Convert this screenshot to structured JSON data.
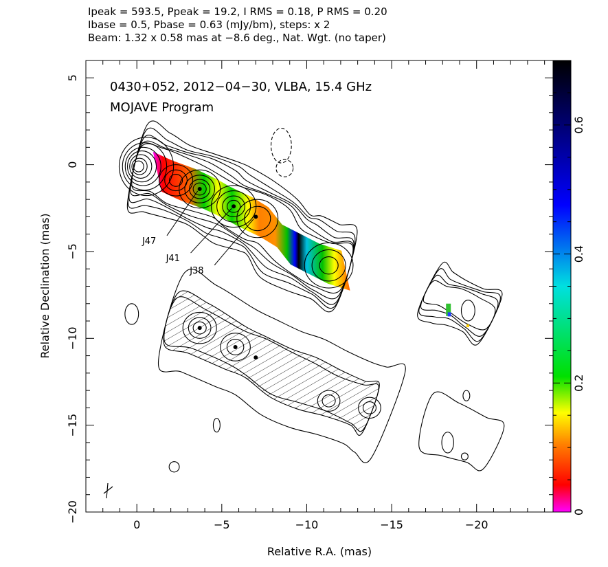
{
  "header": {
    "line1": "Ipeak = 593.5, Ppeak = 19.2, I RMS = 0.18, P RMS = 0.20",
    "line2": "Ibase = 0.5, Pbase = 0.63 (mJy/bm), steps: x 2",
    "line3": "Beam: 1.32 x 0.58 mas at −8.6 deg., Nat. Wgt. (no taper)"
  },
  "chart_data": {
    "type": "contour",
    "title": "0430+052, 2012−04−30, VLBA, 15.4 GHz",
    "subtitle": "MOJAVE Program",
    "xlabel": "Relative R.A. (mas)",
    "ylabel": "Relative Declination (mas)",
    "xlim": [
      3,
      -24.5
    ],
    "ylim": [
      -20,
      6
    ],
    "xticks": [
      0,
      -5,
      -10,
      -15,
      -20
    ],
    "xtick_labels": [
      "0",
      "−5",
      "−10",
      "−15",
      "−20"
    ],
    "yticks": [
      5,
      0,
      -5,
      -10,
      -15,
      -20
    ],
    "ytick_labels": [
      "5",
      "0",
      "−5",
      "−10",
      "−15",
      "−20"
    ],
    "colorbar": {
      "range": [
        0,
        0.7
      ],
      "ticks": [
        0,
        0.2,
        0.4,
        0.6
      ],
      "tick_labels": [
        "0",
        "0.2",
        "0.4",
        "0.6"
      ]
    },
    "components": [
      {
        "name": "J47",
        "x": -3.7,
        "y": -1.4,
        "label_x": -0.8,
        "label_y": -4.4
      },
      {
        "name": "J41",
        "x": -5.7,
        "y": -2.4,
        "label_x": -2.2,
        "label_y": -5.4
      },
      {
        "name": "J38",
        "x": -7.0,
        "y": -3.0,
        "label_x": -3.6,
        "label_y": -6.1
      }
    ],
    "lower_component_dots": [
      {
        "x": -3.7,
        "y": -9.4
      },
      {
        "x": -5.8,
        "y": -10.5
      },
      {
        "x": -7.0,
        "y": -11.1
      }
    ],
    "ridge_upper": [
      [
        0,
        -0.1
      ],
      [
        -1.2,
        -0.4
      ],
      [
        -2.3,
        -0.9
      ],
      [
        -3.7,
        -1.4
      ],
      [
        -5.0,
        -2.0
      ],
      [
        -5.7,
        -2.4
      ],
      [
        -7.0,
        -3.0
      ],
      [
        -8.0,
        -3.6
      ],
      [
        -8.8,
        -4.6
      ],
      [
        -9.8,
        -5.1
      ],
      [
        -11.0,
        -5.7
      ],
      [
        -12.3,
        -6.1
      ]
    ],
    "ridge_lower": [
      [
        -2.0,
        -8.9
      ],
      [
        -3.7,
        -9.4
      ],
      [
        -5.8,
        -10.5
      ],
      [
        -7.0,
        -11.1
      ],
      [
        -8.5,
        -12.0
      ],
      [
        -10.0,
        -12.6
      ],
      [
        -11.5,
        -13.2
      ],
      [
        -13.0,
        -13.7
      ],
      [
        -13.8,
        -14.0
      ]
    ],
    "isolated_contours": [
      {
        "x": -8.7,
        "y": -0.2,
        "rx": 0.5,
        "ry": 0.5
      },
      {
        "x": -8.5,
        "y": 1.1,
        "rx": 0.6,
        "ry": 1.0
      },
      {
        "x": 0.3,
        "y": -8.6,
        "rx": 0.4,
        "ry": 0.6
      },
      {
        "x": -4.7,
        "y": -15.0,
        "rx": 0.2,
        "ry": 0.4
      },
      {
        "x": -2.2,
        "y": -17.4,
        "rx": 0.3,
        "ry": 0.3
      },
      {
        "x": -19.4,
        "y": -13.3,
        "rx": 0.2,
        "ry": 0.3
      },
      {
        "x": -19.3,
        "y": -16.8,
        "rx": 0.2,
        "ry": 0.2
      }
    ],
    "color_scale": [
      "#ff00ff",
      "#ff0000",
      "#ff8000",
      "#ffff00",
      "#00e000",
      "#00e0e0",
      "#0000ff",
      "#000000"
    ]
  }
}
